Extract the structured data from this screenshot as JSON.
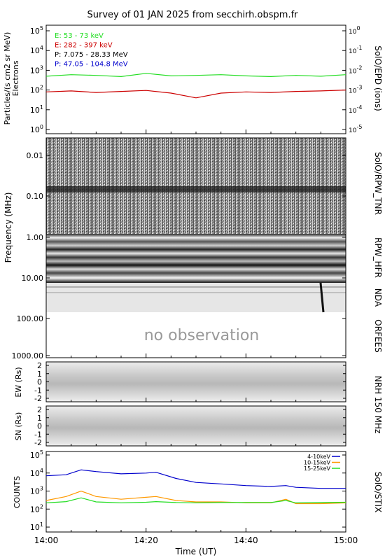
{
  "title": "Survey of 01 JAN 2025 from secchirh.obspm.fr",
  "time_axis": {
    "label": "Time (UT)",
    "ticks": [
      "14:00",
      "14:20",
      "14:40",
      "15:00"
    ]
  },
  "panels": {
    "epd": {
      "ylabel": "Particles/(s cm2 sr MeV)",
      "ylabel2": "Electrons",
      "right_label": "SolO/EPD (ions)",
      "yticks_left": [
        "10^0",
        "10^1",
        "10^2",
        "10^3",
        "10^4",
        "10^5"
      ],
      "yticks_right": [
        "10^-5",
        "10^-4",
        "10^-3",
        "10^-2",
        "10^-1",
        "10^0"
      ],
      "legend": [
        {
          "label": "E: 53 - 73 keV",
          "color": "#22dd22"
        },
        {
          "label": "E: 282 - 397 keV",
          "color": "#cc0000"
        },
        {
          "label": "P: 7.075 - 28.33 MeV",
          "color": "#000000"
        },
        {
          "label": "P: 47.05 - 104.8 MeV",
          "color": "#0000cc"
        }
      ]
    },
    "spectro": {
      "ylabel": "Frequency (MHz)",
      "yticks": [
        "0.01",
        "0.10",
        "1.00",
        "10.00",
        "100.00",
        "1000.00"
      ],
      "labels": {
        "tnr": "SolO/RPW_TNR",
        "hfr": "RPW_HFR",
        "nda": "NDA",
        "orfees": "ORFEES"
      },
      "no_obs": "no observation"
    },
    "nrh": {
      "right_label": "NRH 150 MHz",
      "ew_label": "EW (Rs)",
      "sn_label": "SN (Rs)",
      "yticks": [
        "2",
        "1",
        "0",
        "-1",
        "-2"
      ]
    },
    "stix": {
      "ylabel": "COUNTS",
      "right_label": "SolO/STIX",
      "yticks": [
        "10^1",
        "10^2",
        "10^3",
        "10^4",
        "10^5"
      ],
      "legend": [
        {
          "label": "4-10keV",
          "color": "#0000cc"
        },
        {
          "label": "10-15keV",
          "color": "#ff9900"
        },
        {
          "label": "15-25keV",
          "color": "#22dd22"
        }
      ]
    }
  },
  "chart_data": [
    {
      "type": "line",
      "title": "Survey of 01 JAN 2025 from secchirh.obspm.fr",
      "ylabel": "Particles/(s cm2 sr MeV)",
      "yscale": "log",
      "ylim": [
        1,
        100000
      ],
      "x": [
        "14:00",
        "14:05",
        "14:10",
        "14:15",
        "14:20",
        "14:25",
        "14:30",
        "14:35",
        "14:40",
        "14:45",
        "14:50",
        "14:55",
        "15:00"
      ],
      "series": [
        {
          "name": "E: 53 - 73 keV",
          "color": "#22dd22",
          "values": [
            500,
            600,
            550,
            480,
            700,
            520,
            550,
            600,
            520,
            480,
            550,
            500,
            600
          ]
        },
        {
          "name": "E: 282 - 397 keV",
          "color": "#cc0000",
          "values": [
            80,
            90,
            75,
            85,
            95,
            70,
            40,
            70,
            80,
            75,
            85,
            90,
            100
          ]
        }
      ]
    },
    {
      "type": "line",
      "ylabel": "COUNTS",
      "yscale": "log",
      "ylim": [
        10,
        100000
      ],
      "x": [
        "14:00",
        "14:04",
        "14:07",
        "14:10",
        "14:15",
        "14:20",
        "14:22",
        "14:26",
        "14:30",
        "14:35",
        "14:40",
        "14:45",
        "14:48",
        "14:50",
        "14:55",
        "15:00"
      ],
      "series": [
        {
          "name": "4-10keV",
          "color": "#0000cc",
          "values": [
            7000,
            8000,
            15000,
            12000,
            9000,
            10000,
            11000,
            5000,
            3000,
            2500,
            2000,
            1800,
            2000,
            1600,
            1400,
            1400
          ]
        },
        {
          "name": "10-15keV",
          "color": "#ff9900",
          "values": [
            300,
            500,
            1000,
            500,
            350,
            450,
            500,
            300,
            250,
            250,
            220,
            220,
            350,
            200,
            200,
            220
          ]
        },
        {
          "name": "15-25keV",
          "color": "#22dd22",
          "values": [
            220,
            260,
            420,
            250,
            220,
            240,
            260,
            230,
            220,
            230,
            230,
            230,
            300,
            220,
            230,
            240
          ]
        }
      ]
    }
  ]
}
